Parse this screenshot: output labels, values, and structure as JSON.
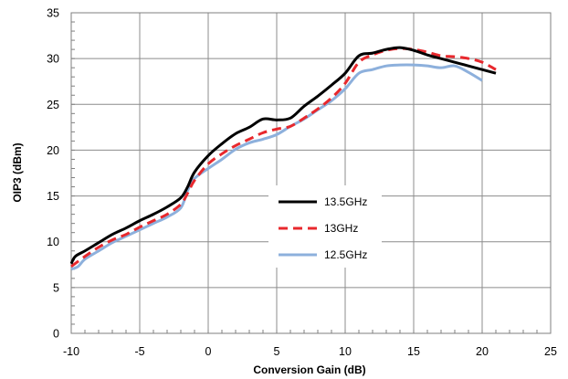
{
  "chart_data": {
    "type": "line",
    "xlabel": "Conversion Gain (dB)",
    "ylabel": "OIP3 (dBm)",
    "xlim": [
      -10,
      25
    ],
    "ylim": [
      0,
      35
    ],
    "x_ticks": [
      -10,
      -5,
      0,
      5,
      10,
      15,
      20,
      25
    ],
    "y_ticks": [
      0,
      5,
      10,
      15,
      20,
      25,
      30,
      35
    ],
    "x_tick_labels": [
      "-10",
      "-5",
      "0",
      "5",
      "10",
      "15",
      "20",
      "25"
    ],
    "y_tick_labels": [
      "0",
      "5",
      "10",
      "15",
      "20",
      "25",
      "30",
      "35"
    ],
    "grid": true,
    "legend_placement": "center",
    "series": [
      {
        "name": "13.5GHz",
        "color": "#000000",
        "style": "solid",
        "x": [
          -10,
          -9.7,
          -9,
          -8,
          -7,
          -6,
          -5,
          -4,
          -3,
          -2,
          -1.5,
          -1,
          0,
          1,
          2,
          3,
          4,
          5,
          6,
          7,
          8,
          9,
          10,
          11,
          12,
          13,
          14,
          15,
          16,
          17,
          18,
          19,
          20,
          21
        ],
        "y": [
          7.6,
          8.4,
          9.0,
          9.9,
          10.8,
          11.5,
          12.3,
          13.0,
          13.8,
          14.8,
          16.0,
          17.6,
          19.4,
          20.7,
          21.8,
          22.5,
          23.4,
          23.3,
          23.5,
          24.8,
          25.9,
          27.1,
          28.4,
          30.3,
          30.6,
          31.0,
          31.2,
          30.9,
          30.4,
          30.0,
          29.6,
          29.2,
          28.8,
          28.4
        ]
      },
      {
        "name": "13GHz",
        "color": "#e8282d",
        "style": "dashed",
        "x": [
          -10,
          -9,
          -8,
          -7,
          -6,
          -5,
          -4,
          -3,
          -2,
          -1.5,
          -1,
          0,
          1,
          2,
          3,
          4,
          5,
          6,
          7,
          8,
          9,
          10,
          11,
          12,
          13,
          14,
          15,
          16,
          17,
          18,
          19,
          20,
          21
        ],
        "y": [
          7.3,
          8.4,
          9.4,
          10.2,
          10.8,
          11.6,
          12.3,
          13.0,
          14.1,
          15.3,
          16.7,
          18.5,
          19.6,
          20.5,
          21.2,
          21.9,
          22.3,
          22.6,
          23.5,
          24.5,
          25.7,
          27.3,
          29.6,
          30.4,
          30.9,
          31.1,
          31.0,
          30.7,
          30.3,
          30.2,
          30.0,
          29.6,
          28.8
        ]
      },
      {
        "name": "12.5GHz",
        "color": "#8db0dc",
        "style": "solid",
        "x": [
          -10,
          -9.5,
          -9,
          -8,
          -7,
          -6,
          -5,
          -4,
          -3,
          -2,
          -1.5,
          -1,
          0,
          1,
          2,
          3,
          4,
          5,
          6,
          7,
          8,
          9,
          10,
          11,
          12,
          13,
          14,
          15,
          16,
          17,
          18,
          19,
          20
        ],
        "y": [
          7.0,
          7.3,
          8.1,
          9.0,
          9.9,
          10.6,
          11.3,
          12.0,
          12.7,
          13.7,
          15.6,
          16.9,
          18.0,
          19.0,
          20.1,
          20.8,
          21.2,
          21.7,
          22.6,
          23.4,
          24.4,
          25.4,
          26.7,
          28.4,
          28.8,
          29.2,
          29.3,
          29.3,
          29.2,
          29.0,
          29.2,
          28.5,
          27.6
        ]
      }
    ]
  }
}
